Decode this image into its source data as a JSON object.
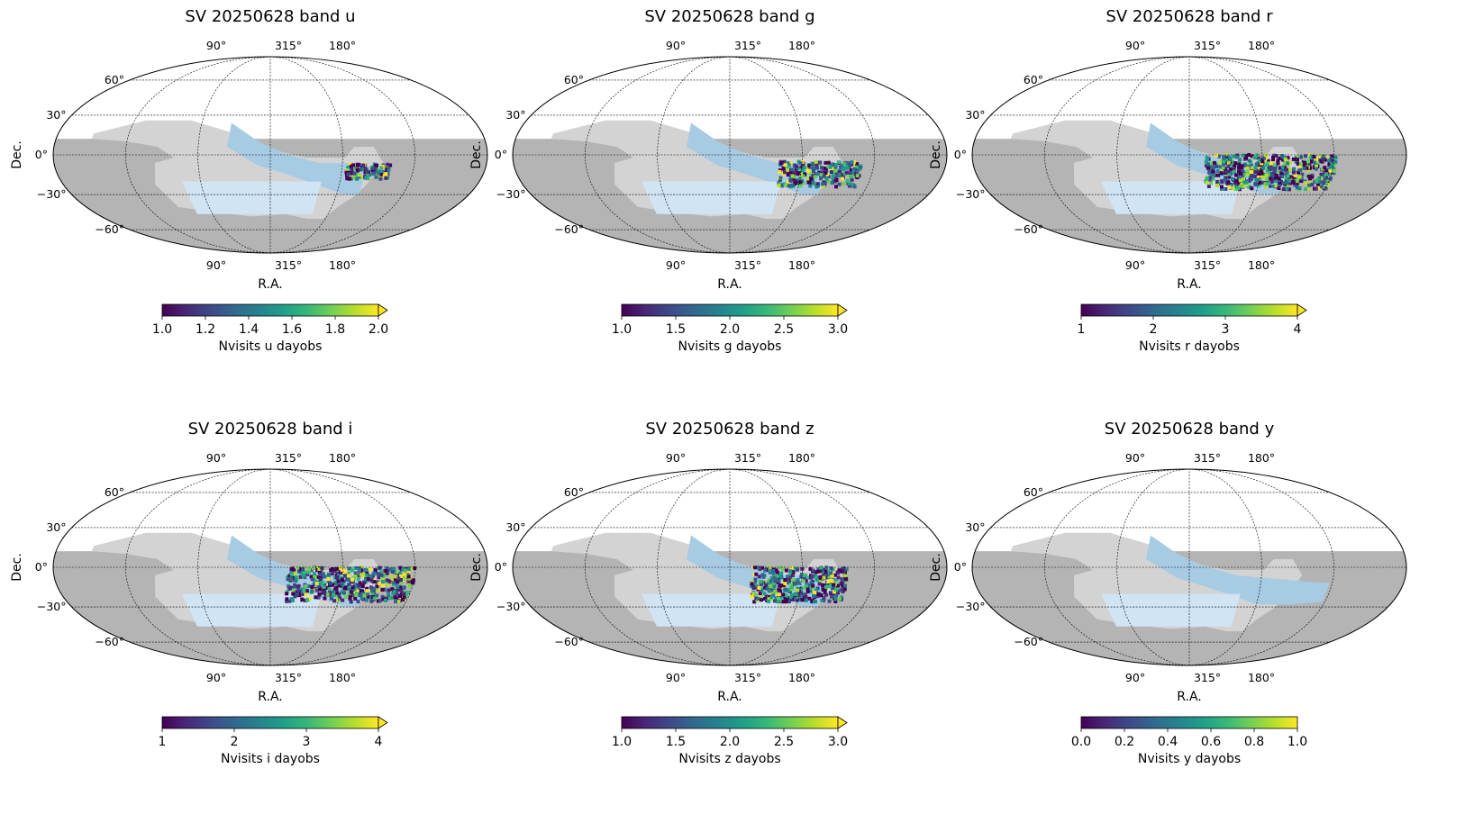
{
  "panel_common": {
    "ra_tick_labels": [
      "90°",
      "315°",
      "180°"
    ],
    "dec_tick_labels": [
      "60°",
      "30°",
      "0°",
      "−30°",
      "−60°"
    ],
    "xlabel": "R.A.",
    "ylabel": "Dec.",
    "colors": {
      "outer_region": "#b4b4b4",
      "inner_region": "#d3d3d3",
      "stripe_band": "#a7cbe3",
      "footprint_block": "#d1e4f4",
      "graticule": "#000000"
    }
  },
  "chart_data": [
    {
      "type": "heatmap",
      "projection": "mollweide",
      "title": "SV 20250628 band u",
      "colorbar": {
        "label": "Nvisits u dayobs",
        "min": 1.0,
        "max": 2.0,
        "ticks": [
          "1.0",
          "1.2",
          "1.4",
          "1.6",
          "1.8",
          "2.0"
        ],
        "extend": "max",
        "colormap": "viridis"
      },
      "observed_area": "small patch, RA ~190°–230°, Dec ~−5° to −20°",
      "has_data": true
    },
    {
      "type": "heatmap",
      "projection": "mollweide",
      "title": "SV 20250628 band g",
      "colorbar": {
        "label": "Nvisits g dayobs",
        "min": 1.0,
        "max": 3.0,
        "ticks": [
          "1.0",
          "1.5",
          "2.0",
          "2.5",
          "3.0"
        ],
        "extend": "max",
        "colormap": "viridis"
      },
      "observed_area": "patch, RA ~185°–240°, Dec ~−5° to −25°",
      "has_data": true
    },
    {
      "type": "heatmap",
      "projection": "mollweide",
      "title": "SV 20250628 band r",
      "colorbar": {
        "label": "Nvisits r dayobs",
        "min": 1,
        "max": 4,
        "ticks": [
          "1",
          "2",
          "3",
          "4"
        ],
        "extend": "max",
        "colormap": "viridis"
      },
      "observed_area": "wide patch, RA ~180°–320°, Dec ~0° to −25°",
      "has_data": true
    },
    {
      "type": "heatmap",
      "projection": "mollweide",
      "title": "SV 20250628 band i",
      "colorbar": {
        "label": "Nvisits i dayobs",
        "min": 1,
        "max": 4,
        "ticks": [
          "1",
          "2",
          "3",
          "4"
        ],
        "extend": "max",
        "colormap": "viridis"
      },
      "observed_area": "wide patch, RA ~180°–320°, Dec ~0° to −25°",
      "has_data": true
    },
    {
      "type": "heatmap",
      "projection": "mollweide",
      "title": "SV 20250628 band z",
      "colorbar": {
        "label": "Nvisits z dayobs",
        "min": 1.0,
        "max": 3.0,
        "ticks": [
          "1.0",
          "1.5",
          "2.0",
          "2.5",
          "3.0"
        ],
        "extend": "max",
        "colormap": "viridis"
      },
      "observed_area": "patch, RA ~185°–300°, Dec ~0° to −25°",
      "has_data": true
    },
    {
      "type": "heatmap",
      "projection": "mollweide",
      "title": "SV 20250628 band y",
      "colorbar": {
        "label": "Nvisits y dayobs",
        "min": 0.0,
        "max": 1.0,
        "ticks": [
          "0.0",
          "0.2",
          "0.4",
          "0.6",
          "0.8",
          "1.0"
        ],
        "extend": "neither",
        "colormap": "viridis"
      },
      "observed_area": "none",
      "has_data": false
    }
  ]
}
